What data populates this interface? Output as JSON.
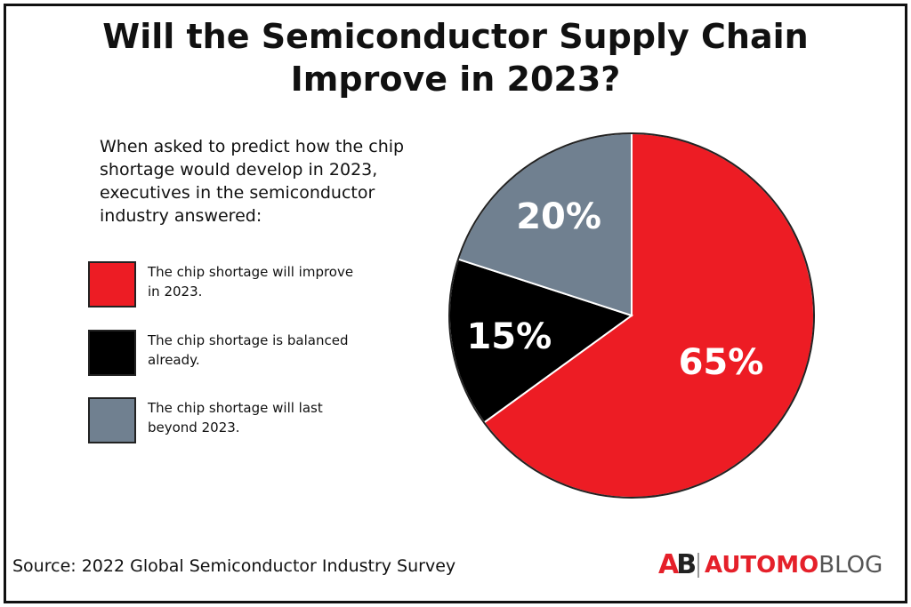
{
  "title_lines": [
    "Will the Semiconductor Supply Chain",
    "Improve in 2023?"
  ],
  "intro_lines": [
    "When asked to predict how the chip",
    "shortage would develop in 2023,",
    "executives in the semiconductor",
    "industry answered:"
  ],
  "legend": [
    {
      "lines": [
        "The chip shortage will improve",
        "in 2023."
      ],
      "color": "#ed1c24"
    },
    {
      "lines": [
        "The chip shortage is balanced",
        "already."
      ],
      "color": "#000000"
    },
    {
      "lines": [
        "The chip shortage will last",
        "beyond 2023."
      ],
      "color": "#708090"
    }
  ],
  "source": "Source: 2022 Global Semiconductor Industry Survey",
  "logo": {
    "mark_a": "A",
    "mark_b": "B",
    "brand_a": "AUTOMO",
    "brand_b": "BLOG"
  },
  "chart_data": {
    "type": "pie",
    "slices": [
      {
        "label": "The chip shortage will improve in 2023.",
        "value": 65,
        "display": "65%",
        "color": "#ed1c24"
      },
      {
        "label": "The chip shortage is balanced already.",
        "value": 15,
        "display": "15%",
        "color": "#000000"
      },
      {
        "label": "The chip shortage will last beyond 2023.",
        "value": 20,
        "display": "20%",
        "color": "#708090"
      }
    ],
    "start": "12 o'clock",
    "direction": "clockwise",
    "label_color": "#ffffff"
  }
}
